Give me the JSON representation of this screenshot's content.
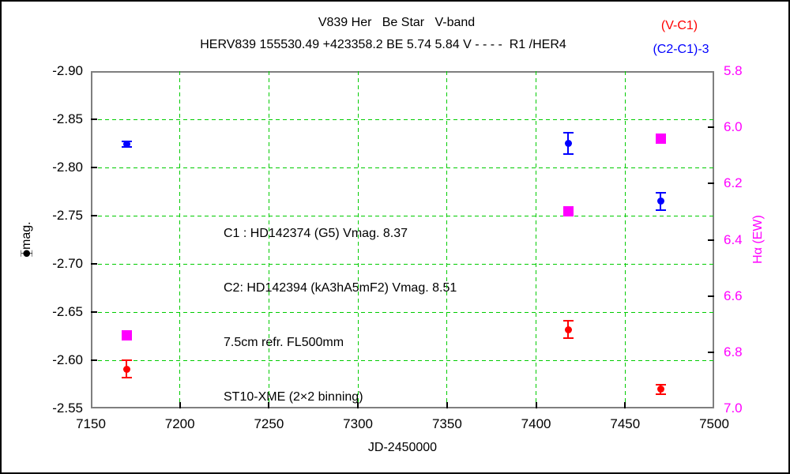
{
  "header": {
    "title": "V839 Her   Be Star   V-band",
    "subtitle": "HERV839 155530.49 +423358.2 BE 5.74 5.84 V - - - -  R1 /HER4"
  },
  "legend": {
    "entries": [
      {
        "label": "(V-C1)",
        "color": "#ff0000"
      },
      {
        "label": "(C2-C1)-3",
        "color": "#0000ff"
      }
    ]
  },
  "annotation": {
    "lines": [
      "C1 : HD142374 (G5) Vmag. 8.37",
      "C2: HD142394 (kA3hA5mF2) Vmag. 8.51",
      "7.5cm refr. FL500mm",
      "ST10-XME (2×2 binning)"
    ]
  },
  "chart_data": {
    "type": "scatter",
    "title": "V839 Her   Be Star   V-band",
    "subtitle": "HERV839 155530.49 +423358.2 BE 5.74 5.84 V - - - -  R1 /HER4",
    "xlabel": "JD-2450000",
    "ylabel_left": "⧳mag.",
    "ylabel_right": "Hα (EW)",
    "x_range": [
      7150,
      7500
    ],
    "y_left_range_top_to_bottom": [
      -2.9,
      -2.55
    ],
    "y_right_range_top_to_bottom": [
      5.8,
      7.0
    ],
    "grid": {
      "show": true,
      "color": "#00cc00",
      "style": "dashed"
    },
    "frame_color": "#7f7f7f",
    "axis_colors": {
      "left": "#000000",
      "right": "#ff00ff",
      "x": "#000000"
    },
    "x_ticks": [
      {
        "v": 7150,
        "label": "7150"
      },
      {
        "v": 7200,
        "label": "7200"
      },
      {
        "v": 7250,
        "label": "7250"
      },
      {
        "v": 7300,
        "label": "7300"
      },
      {
        "v": 7350,
        "label": "7350"
      },
      {
        "v": 7400,
        "label": "7400"
      },
      {
        "v": 7450,
        "label": "7450"
      },
      {
        "v": 7500,
        "label": "7500"
      }
    ],
    "y_left_ticks": [
      {
        "v": -2.9,
        "label": "-2.90"
      },
      {
        "v": -2.85,
        "label": "-2.85"
      },
      {
        "v": -2.8,
        "label": "-2.80"
      },
      {
        "v": -2.75,
        "label": "-2.75"
      },
      {
        "v": -2.7,
        "label": "-2.70"
      },
      {
        "v": -2.65,
        "label": "-2.65"
      },
      {
        "v": -2.6,
        "label": "-2.60"
      },
      {
        "v": -2.55,
        "label": "-2.55"
      }
    ],
    "y_right_ticks": [
      {
        "v": 5.8,
        "label": "5.8"
      },
      {
        "v": 6.0,
        "label": "6.0"
      },
      {
        "v": 6.2,
        "label": "6.2"
      },
      {
        "v": 6.4,
        "label": "6.4"
      },
      {
        "v": 6.6,
        "label": "6.6"
      },
      {
        "v": 6.8,
        "label": "6.8"
      },
      {
        "v": 7.0,
        "label": "7.0"
      }
    ],
    "series": [
      {
        "name": "(V-C1)",
        "axis": "left",
        "marker": "circle",
        "color": "#ff0000",
        "points": [
          {
            "jd": 7170,
            "val": -2.591,
            "err": 0.009
          },
          {
            "jd": 7418,
            "val": -2.632,
            "err": 0.009
          },
          {
            "jd": 7470,
            "val": -2.57,
            "err": 0.005
          }
        ]
      },
      {
        "name": "(C2-C1)-3",
        "axis": "left",
        "marker": "circle",
        "color": "#0000ff",
        "points": [
          {
            "jd": 7170,
            "val": -2.824,
            "err": 0.003
          },
          {
            "jd": 7418,
            "val": -2.825,
            "err": 0.011
          },
          {
            "jd": 7470,
            "val": -2.765,
            "err": 0.009
          }
        ]
      },
      {
        "name": "Hα (EW)",
        "axis": "right",
        "marker": "square",
        "color": "#ff00ff",
        "points": [
          {
            "jd": 7170,
            "val": 6.74
          },
          {
            "jd": 7418,
            "val": 6.3
          },
          {
            "jd": 7470,
            "val": 6.04
          }
        ]
      }
    ]
  }
}
